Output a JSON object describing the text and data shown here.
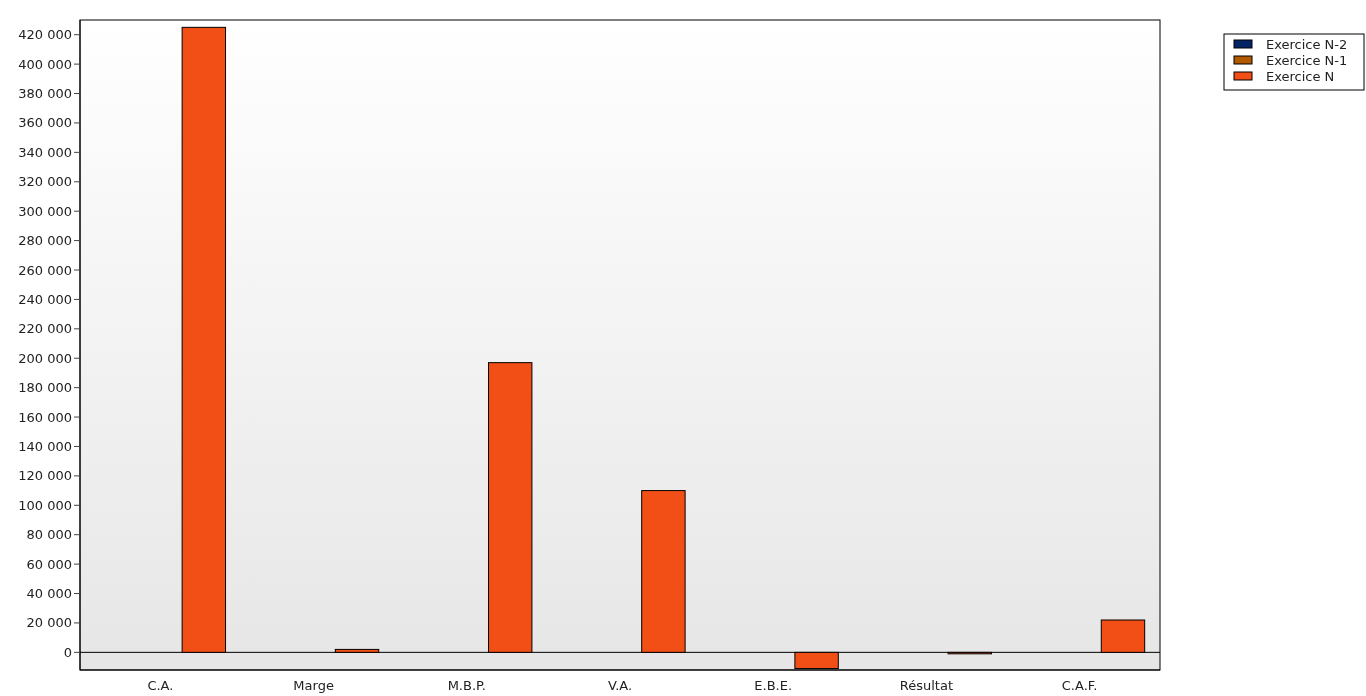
{
  "chart_data": {
    "type": "bar",
    "categories": [
      "C.A.",
      "Marge",
      "M.B.P.",
      "V.A.",
      "E.B.E.",
      "Résultat",
      "C.A.F."
    ],
    "series": [
      {
        "name": "Exercice N-2",
        "color": "#032566",
        "values": [
          0,
          0,
          0,
          0,
          0,
          0,
          0
        ]
      },
      {
        "name": "Exercice N-1",
        "color": "#b35a00",
        "values": [
          0,
          0,
          0,
          0,
          0,
          0,
          0
        ]
      },
      {
        "name": "Exercice N",
        "color": "#f24f17",
        "values": [
          425000,
          2000,
          197000,
          110000,
          -11000,
          -1000,
          22000
        ]
      }
    ],
    "ylim": [
      -12000,
      430000
    ],
    "yticks": [
      {
        "value": 0,
        "label": "0"
      },
      {
        "value": 20000,
        "label": "20 000"
      },
      {
        "value": 40000,
        "label": "40 000"
      },
      {
        "value": 60000,
        "label": "60 000"
      },
      {
        "value": 80000,
        "label": "80 000"
      },
      {
        "value": 100000,
        "label": "100 000"
      },
      {
        "value": 120000,
        "label": "120 000"
      },
      {
        "value": 140000,
        "label": "140 000"
      },
      {
        "value": 160000,
        "label": "160 000"
      },
      {
        "value": 180000,
        "label": "180 000"
      },
      {
        "value": 200000,
        "label": "200 000"
      },
      {
        "value": 220000,
        "label": "220 000"
      },
      {
        "value": 240000,
        "label": "240 000"
      },
      {
        "value": 260000,
        "label": "260 000"
      },
      {
        "value": 280000,
        "label": "280 000"
      },
      {
        "value": 300000,
        "label": "300 000"
      },
      {
        "value": 320000,
        "label": "320 000"
      },
      {
        "value": 340000,
        "label": "340 000"
      },
      {
        "value": 360000,
        "label": "360 000"
      },
      {
        "value": 380000,
        "label": "380 000"
      },
      {
        "value": 400000,
        "label": "400 000"
      },
      {
        "value": 420000,
        "label": "420 000"
      }
    ],
    "legend": "top right"
  }
}
